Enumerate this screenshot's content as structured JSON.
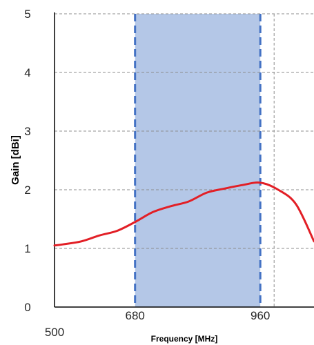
{
  "chart_data": {
    "type": "line",
    "title": "",
    "xlabel": "Frequency [MHz]",
    "ylabel": "Gain [dBi]",
    "xlim": [
      500,
      1080
    ],
    "ylim": [
      0,
      5
    ],
    "x_tick_labels": [
      "500",
      "680",
      "960"
    ],
    "y_tick_labels": [
      "0",
      "1",
      "2",
      "3",
      "4",
      "5"
    ],
    "grid": true,
    "legend": "none",
    "highlight_band": {
      "x_start": 680,
      "x_end": 960,
      "color": "#b4c7e7",
      "edge_color": "#4472c4"
    },
    "series": [
      {
        "color": "#e21f26",
        "x": [
          500,
          520,
          560,
          600,
          640,
          680,
          720,
          760,
          800,
          840,
          880,
          920,
          960,
          1000,
          1040,
          1080
        ],
        "y": [
          1.05,
          1.07,
          1.12,
          1.22,
          1.3,
          1.45,
          1.62,
          1.72,
          1.8,
          1.95,
          2.02,
          2.08,
          2.12,
          2.0,
          1.75,
          1.12
        ]
      }
    ]
  }
}
